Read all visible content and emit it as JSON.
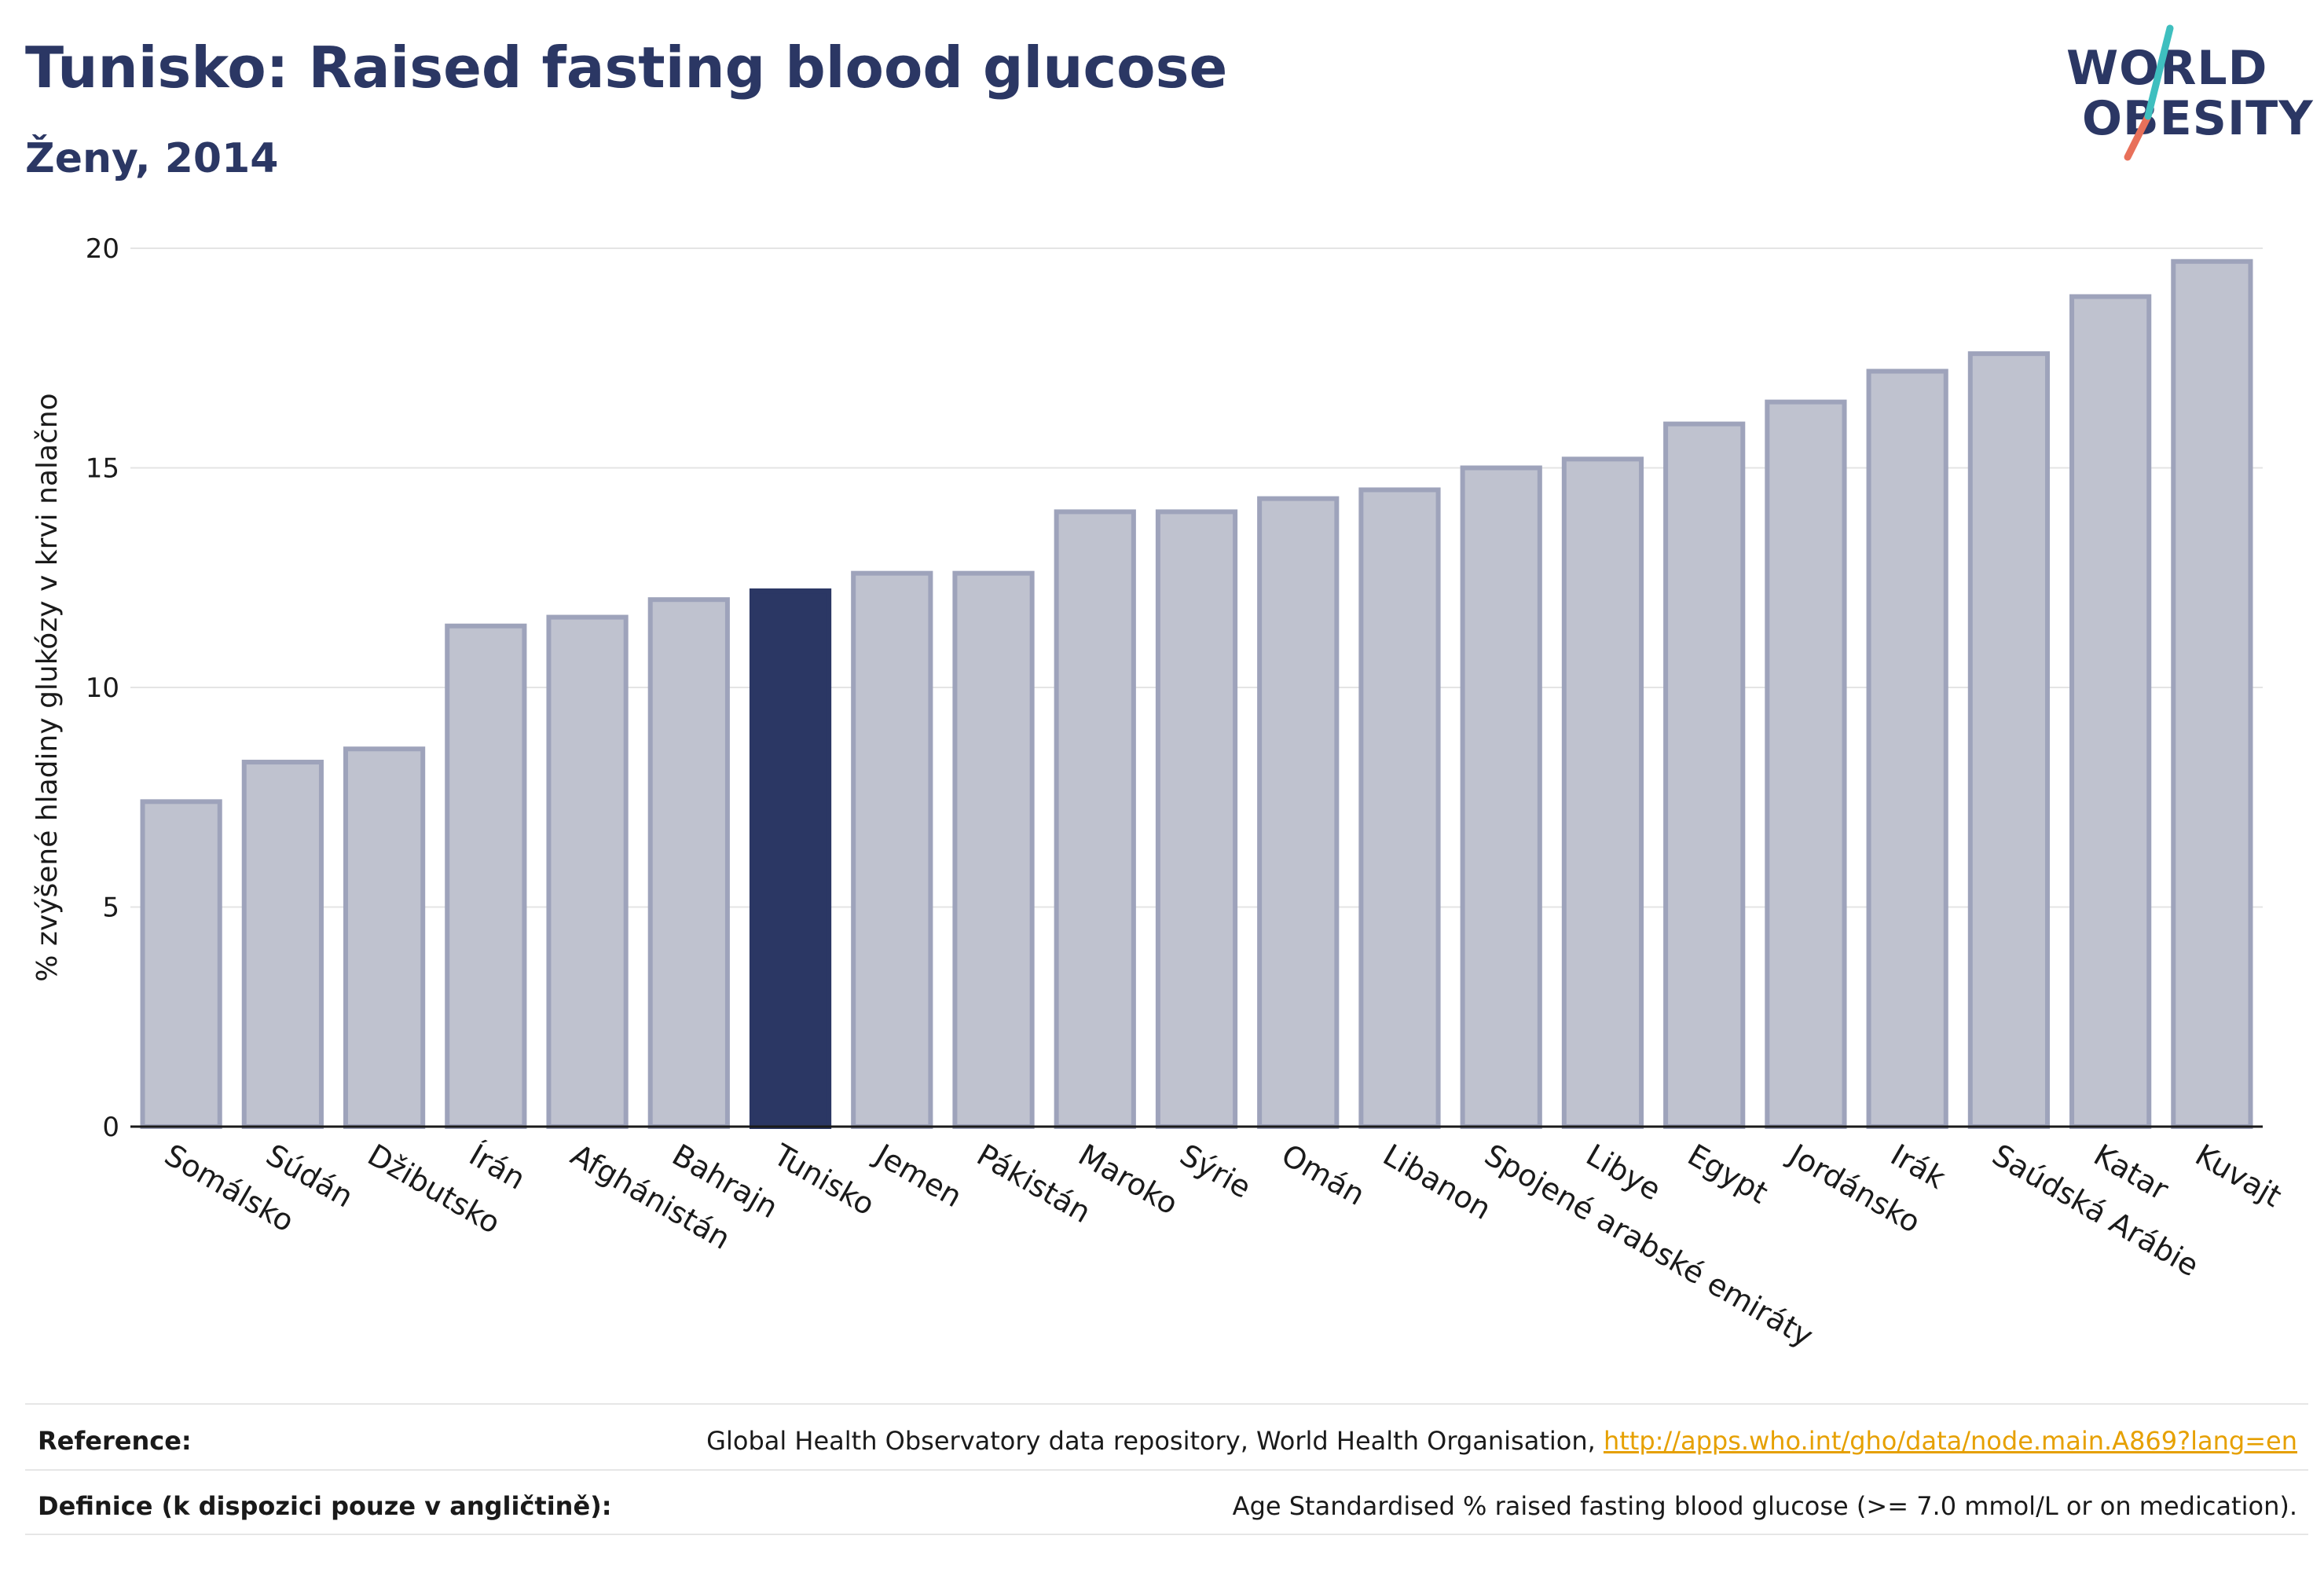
{
  "header": {
    "title": "Tunisko: Raised fasting blood glucose",
    "subtitle": "Ženy, 2014"
  },
  "logo": {
    "line1": "WORLD",
    "line2": "OBESITY"
  },
  "colors": {
    "highlight": "#2b3764",
    "bar_fill": "#bfc2cf",
    "bar_stroke": "#9ea3bb",
    "title": "#2b3764",
    "link": "#e6a000"
  },
  "chart_data": {
    "type": "bar",
    "title": "Tunisko: Raised fasting blood glucose",
    "subtitle": "Ženy, 2014",
    "xlabel": "",
    "ylabel": "% zvýšené hladiny glukózy v krvi nalačno",
    "ylim": [
      0,
      20
    ],
    "yticks": [
      0,
      5,
      10,
      15,
      20
    ],
    "grid": true,
    "highlight": "Tunisko",
    "categories": [
      "Somálsko",
      "Súdán",
      "Džibutsko",
      "Írán",
      "Afghánistán",
      "Bahrajn",
      "Tunisko",
      "Jemen",
      "Pákistán",
      "Maroko",
      "Sýrie",
      "Omán",
      "Libanon",
      "Spojené arabské emiráty",
      "Libye",
      "Egypt",
      "Jordánsko",
      "Irák",
      "Saúdská Arábie",
      "Katar",
      "Kuvajt"
    ],
    "values": [
      7.4,
      8.3,
      8.6,
      11.4,
      11.6,
      12.0,
      12.2,
      12.6,
      12.6,
      14.0,
      14.0,
      14.3,
      14.5,
      15.0,
      15.2,
      16.0,
      16.5,
      17.2,
      17.6,
      18.9,
      19.7
    ]
  },
  "footer": {
    "reference_label": "Reference:",
    "reference_text": "Global Health Observatory data repository, World Health Organisation, ",
    "reference_link": "http://apps.who.int/gho/data/node.main.A869?lang=en",
    "definition_label": "Definice (k dispozici pouze v angličtině):",
    "definition_text": "Age Standardised % raised fasting blood glucose (>= 7.0 mmol/L or on medication)."
  }
}
